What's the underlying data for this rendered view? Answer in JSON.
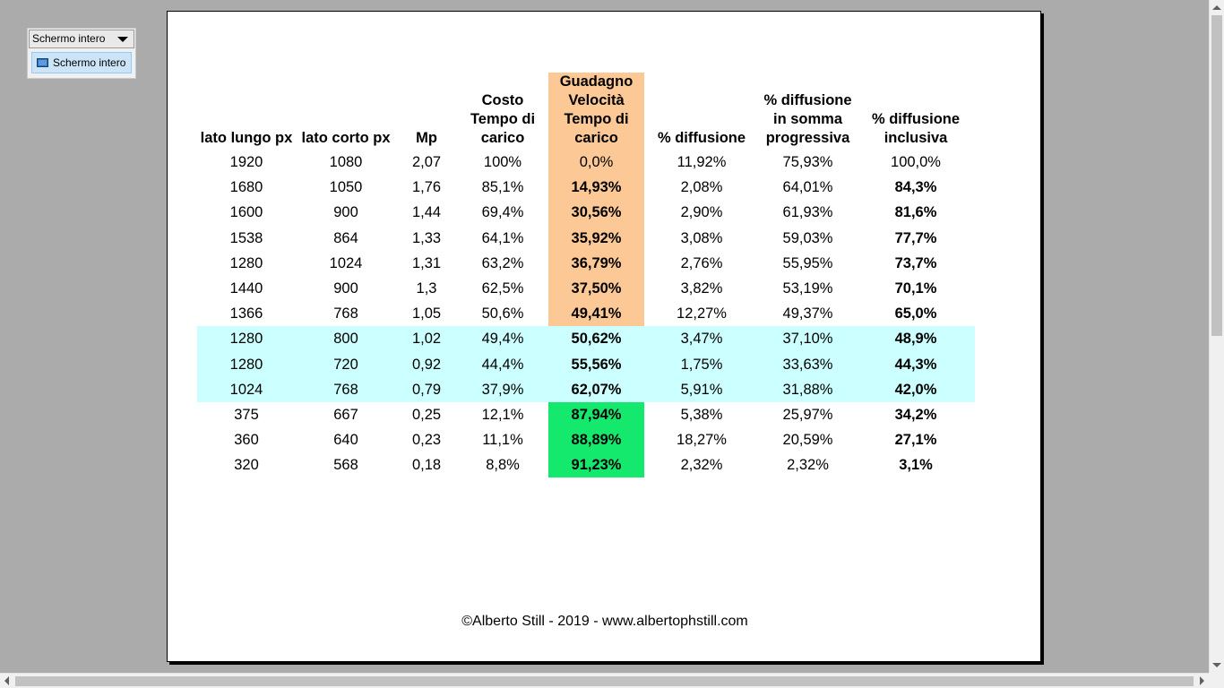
{
  "toolbar": {
    "dropdown_label": "Schermo intero",
    "button_label": "Schermo intero"
  },
  "table": {
    "headers": {
      "long_side": "lato lungo px",
      "short_side": "lato corto px",
      "mp": "Mp",
      "cost": "Costo Tempo di carico",
      "gain": "Guadagno Velocità Tempo di carico",
      "diffusion": "% diffusione",
      "cumulative": "% diffusione in somma progressiva",
      "inclusive": "% diffusione inclusiva"
    },
    "rows": [
      {
        "long": "1920",
        "short": "1080",
        "mp": "2,07",
        "cost": "100%",
        "gain": "0,0%",
        "diff": "11,92%",
        "cum": "75,93%",
        "incl": "100,0%"
      },
      {
        "long": "1680",
        "short": "1050",
        "mp": "1,76",
        "cost": "85,1%",
        "gain": "14,93%",
        "diff": "2,08%",
        "cum": "64,01%",
        "incl": "84,3%"
      },
      {
        "long": "1600",
        "short": "900",
        "mp": "1,44",
        "cost": "69,4%",
        "gain": "30,56%",
        "diff": "2,90%",
        "cum": "61,93%",
        "incl": "81,6%"
      },
      {
        "long": "1538",
        "short": "864",
        "mp": "1,33",
        "cost": "64,1%",
        "gain": "35,92%",
        "diff": "3,08%",
        "cum": "59,03%",
        "incl": "77,7%"
      },
      {
        "long": "1280",
        "short": "1024",
        "mp": "1,31",
        "cost": "63,2%",
        "gain": "36,79%",
        "diff": "2,76%",
        "cum": "55,95%",
        "incl": "73,7%"
      },
      {
        "long": "1440",
        "short": "900",
        "mp": "1,3",
        "cost": "62,5%",
        "gain": "37,50%",
        "diff": "3,82%",
        "cum": "53,19%",
        "incl": "70,1%"
      },
      {
        "long": "1366",
        "short": "768",
        "mp": "1,05",
        "cost": "50,6%",
        "gain": "49,41%",
        "diff": "12,27%",
        "cum": "49,37%",
        "incl": "65,0%"
      },
      {
        "long": "1280",
        "short": "800",
        "mp": "1,02",
        "cost": "49,4%",
        "gain": "50,62%",
        "diff": "3,47%",
        "cum": "37,10%",
        "incl": "48,9%"
      },
      {
        "long": "1280",
        "short": "720",
        "mp": "0,92",
        "cost": "44,4%",
        "gain": "55,56%",
        "diff": "1,75%",
        "cum": "33,63%",
        "incl": "44,3%"
      },
      {
        "long": "1024",
        "short": "768",
        "mp": "0,79",
        "cost": "37,9%",
        "gain": "62,07%",
        "diff": "5,91%",
        "cum": "31,88%",
        "incl": "42,0%"
      },
      {
        "long": "375",
        "short": "667",
        "mp": "0,25",
        "cost": "12,1%",
        "gain": "87,94%",
        "diff": "5,38%",
        "cum": "25,97%",
        "incl": "34,2%"
      },
      {
        "long": "360",
        "short": "640",
        "mp": "0,23",
        "cost": "11,1%",
        "gain": "88,89%",
        "diff": "18,27%",
        "cum": "20,59%",
        "incl": "27,1%"
      },
      {
        "long": "320",
        "short": "568",
        "mp": "0,18",
        "cost": "8,8%",
        "gain": "91,23%",
        "diff": "2,32%",
        "cum": "2,32%",
        "incl": "3,1%"
      }
    ],
    "colors": {
      "orange": "#fcc896",
      "cyan": "#ccffff",
      "green": "#14e96e"
    }
  },
  "footer": {
    "copyright": "©Alberto Still - 2019 - www.albertophstill.com"
  }
}
